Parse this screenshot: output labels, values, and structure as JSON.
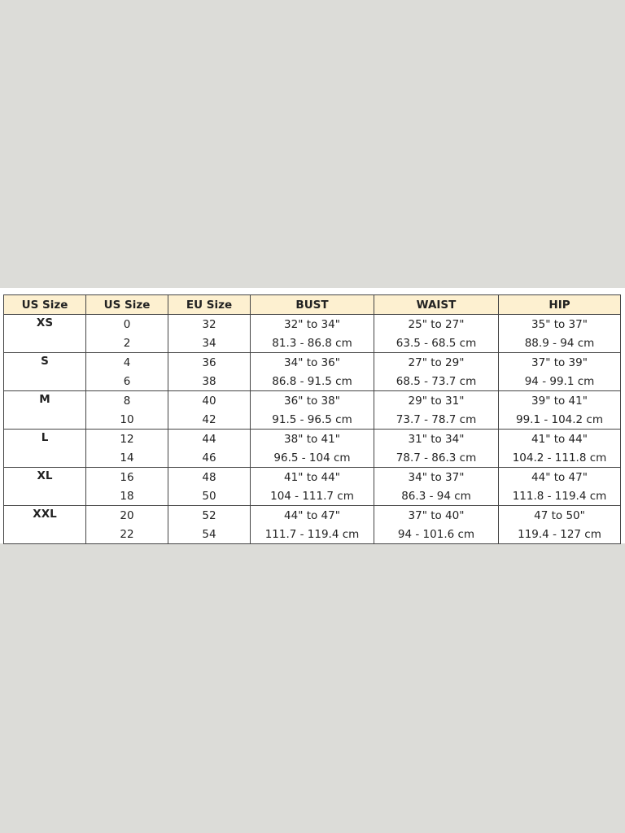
{
  "headers": [
    "US Size",
    "US Size",
    "EU Size",
    "BUST",
    "WAIST",
    "HIP"
  ],
  "header_bg": "#fdf0d0",
  "groups": [
    {
      "size": "XS",
      "rows": [
        [
          "0",
          "32",
          "32\" to 34\"",
          "25\" to 27\"",
          "35\" to 37\""
        ],
        [
          "2",
          "34",
          "81.3 - 86.8 cm",
          "63.5 - 68.5 cm",
          "88.9 - 94 cm"
        ]
      ]
    },
    {
      "size": "S",
      "rows": [
        [
          "4",
          "36",
          "34\" to 36\"",
          "27\" to 29\"",
          "37\" to 39\""
        ],
        [
          "6",
          "38",
          "86.8 - 91.5 cm",
          "68.5 - 73.7 cm",
          "94 - 99.1 cm"
        ]
      ]
    },
    {
      "size": "M",
      "rows": [
        [
          "8",
          "40",
          "36\" to 38\"",
          "29\" to 31\"",
          "39\" to 41\""
        ],
        [
          "10",
          "42",
          "91.5 - 96.5 cm",
          "73.7 - 78.7 cm",
          "99.1 - 104.2 cm"
        ]
      ]
    },
    {
      "size": "L",
      "rows": [
        [
          "12",
          "44",
          "38\" to 41\"",
          "31\" to 34\"",
          "41\" to 44\""
        ],
        [
          "14",
          "46",
          "96.5 - 104 cm",
          "78.7 - 86.3 cm",
          "104.2 - 111.8 cm"
        ]
      ]
    },
    {
      "size": "XL",
      "rows": [
        [
          "16",
          "48",
          "41\" to 44\"",
          "34\" to 37\"",
          "44\" to 47\""
        ],
        [
          "18",
          "50",
          "104 - 111.7 cm",
          "86.3 - 94 cm",
          "111.8 - 119.4 cm"
        ]
      ]
    },
    {
      "size": "XXL",
      "rows": [
        [
          "20",
          "52",
          "44\" to 47\"",
          "37\" to 40\"",
          "47 to 50\""
        ],
        [
          "22",
          "54",
          "111.7 - 119.4 cm",
          "94 - 101.6 cm",
          "119.4 - 127 cm"
        ]
      ]
    }
  ]
}
